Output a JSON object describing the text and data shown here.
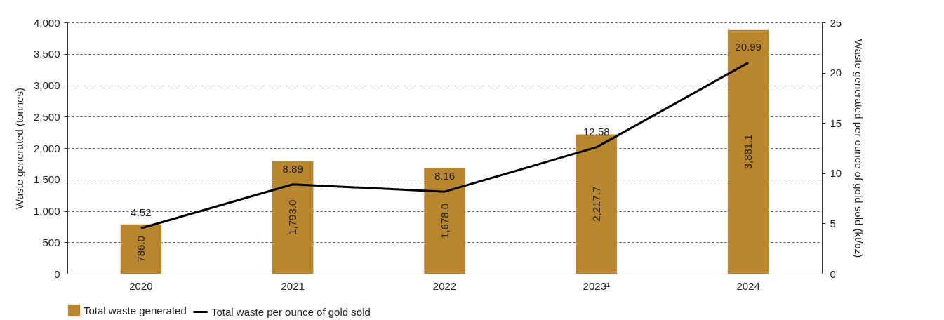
{
  "chart_data": {
    "type": "bar",
    "categories": [
      "2020",
      "2021",
      "2022",
      "2023¹",
      "2024"
    ],
    "ylabel": "Waste generated (tonnes)",
    "y2label": "Waste generated per ounce of gold sold (kt/oz)",
    "ylim": [
      0,
      4000
    ],
    "yticks": [
      0,
      500,
      {
        "value": 1000,
        "label": "1,000"
      },
      {
        "value": 1500,
        "label": "1,500"
      },
      {
        "value": 2000,
        "label": "2,000"
      },
      {
        "value": 2500,
        "label": "2,500"
      },
      {
        "value": 3000,
        "label": "3,000"
      },
      {
        "value": 3500,
        "label": "3,500"
      },
      {
        "value": 4000,
        "label": "4,000"
      }
    ],
    "y2lim": [
      0,
      25
    ],
    "y2ticks": [
      0,
      5,
      10,
      15,
      20,
      25
    ],
    "grid": "y",
    "legend": "bottom",
    "series": [
      {
        "name": "Total waste generated",
        "color": "#b8862e",
        "values": [
          786.0,
          1793.0,
          1678.0,
          2217.7,
          3881.1
        ],
        "value_labels": [
          "786.0",
          "1,793.0",
          "1,678.0",
          "2,217.7",
          "3,881.1"
        ]
      },
      {
        "name": "Total waste per ounce of gold sold",
        "type": "line",
        "axis": "y2",
        "color": "#000000",
        "values": [
          4.52,
          8.89,
          8.16,
          12.58,
          20.99
        ],
        "value_labels": [
          "4.52",
          "8.89",
          "8.16",
          "12.58",
          "20.99"
        ]
      }
    ]
  }
}
